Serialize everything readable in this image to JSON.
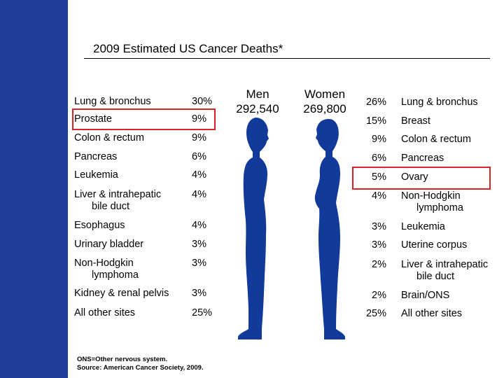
{
  "title": "2009 Estimated US Cancer Deaths*",
  "colors": {
    "bar": "#1f3d99",
    "figure": "#123a9a",
    "highlight": "#d8232a"
  },
  "men_header": {
    "label": "Men",
    "total": "292,540"
  },
  "women_header": {
    "label": "Women",
    "total": "269,800"
  },
  "chart_data": [
    {
      "type": "table",
      "title": "Men",
      "columns": [
        "site",
        "percent"
      ],
      "rows": [
        {
          "site": "Lung & bronchus",
          "percent": 30
        },
        {
          "site": "Prostate",
          "percent": 9
        },
        {
          "site": "Colon & rectum",
          "percent": 9
        },
        {
          "site": "Pancreas",
          "percent": 6
        },
        {
          "site": "Leukemia",
          "percent": 4
        },
        {
          "site": "Liver & intrahepatic bile duct",
          "percent": 4
        },
        {
          "site": "Esophagus",
          "percent": 4
        },
        {
          "site": "Urinary bladder",
          "percent": 3
        },
        {
          "site": "Non-Hodgkin lymphoma",
          "percent": 3
        },
        {
          "site": "Kidney & renal pelvis",
          "percent": 3
        },
        {
          "site": "All other sites",
          "percent": 25
        }
      ]
    },
    {
      "type": "table",
      "title": "Women",
      "columns": [
        "percent",
        "site"
      ],
      "rows": [
        {
          "site": "Lung & bronchus",
          "percent": 26
        },
        {
          "site": "Breast",
          "percent": 15
        },
        {
          "site": "Colon & rectum",
          "percent": 9
        },
        {
          "site": "Pancreas",
          "percent": 6
        },
        {
          "site": "Ovary",
          "percent": 5
        },
        {
          "site": "Non-Hodgkin lymphoma",
          "percent": 4
        },
        {
          "site": "Leukemia",
          "percent": 3
        },
        {
          "site": "Uterine corpus",
          "percent": 3
        },
        {
          "site": "Liver & intrahepatic bile duct",
          "percent": 2
        },
        {
          "site": "Brain/ONS",
          "percent": 2
        },
        {
          "site": "All other sites",
          "percent": 25
        }
      ]
    }
  ],
  "men_rows": [
    {
      "line1": "Lung & bronchus",
      "line2": "",
      "pct": "30%"
    },
    {
      "line1": "Prostate",
      "line2": "",
      "pct": "9%"
    },
    {
      "line1": "Colon & rectum",
      "line2": "",
      "pct": "9%"
    },
    {
      "line1": "Pancreas",
      "line2": "",
      "pct": "6%"
    },
    {
      "line1": "Leukemia",
      "line2": "",
      "pct": "4%"
    },
    {
      "line1": "Liver & intrahepatic",
      "line2": "bile duct",
      "pct": "4%"
    },
    {
      "line1": "Esophagus",
      "line2": "",
      "pct": "4%"
    },
    {
      "line1": "Urinary bladder",
      "line2": "",
      "pct": "3%"
    },
    {
      "line1": "Non-Hodgkin",
      "line2": "lymphoma",
      "pct": "3%"
    },
    {
      "line1": "Kidney & renal pelvis",
      "line2": "",
      "pct": "3%"
    },
    {
      "line1": "All other sites",
      "line2": "",
      "pct": "25%"
    }
  ],
  "women_rows": [
    {
      "line1": "Lung & bronchus",
      "line2": "",
      "pct": "26%"
    },
    {
      "line1": "Breast",
      "line2": "",
      "pct": "15%"
    },
    {
      "line1": "Colon & rectum",
      "line2": "",
      "pct": "9%"
    },
    {
      "line1": "Pancreas",
      "line2": "",
      "pct": "6%"
    },
    {
      "line1": "Ovary",
      "line2": "",
      "pct": "5%"
    },
    {
      "line1": "Non-Hodgkin",
      "line2": "lymphoma",
      "pct": "4%"
    },
    {
      "line1": "Leukemia",
      "line2": "",
      "pct": "3%"
    },
    {
      "line1": "Uterine corpus",
      "line2": "",
      "pct": "3%"
    },
    {
      "line1": "Liver & intrahepatic",
      "line2": "bile duct",
      "pct": "2%"
    },
    {
      "line1": "Brain/ONS",
      "line2": "",
      "pct": "2%"
    },
    {
      "line1": "All other sites",
      "line2": "",
      "pct": "25%"
    }
  ],
  "highlighted": {
    "men": "Prostate",
    "women": "Ovary"
  },
  "footnote": {
    "line1": "ONS=Other nervous system.",
    "line2": "Source: American Cancer Society, 2009."
  }
}
